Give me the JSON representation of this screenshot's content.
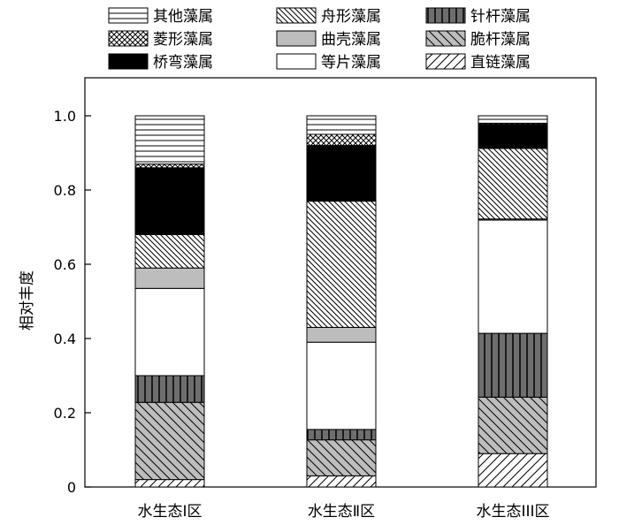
{
  "chart_data": {
    "type": "bar",
    "stacked": true,
    "ylabel": "相对丰度",
    "ylim": [
      0,
      1.0
    ],
    "yticks": [
      "0",
      "0.2",
      "0.4",
      "0.6",
      "0.8",
      "1.0"
    ],
    "categories": [
      "水生态Ⅰ区",
      "水生态Ⅱ区",
      "水生态III区"
    ],
    "legend_position": "top",
    "series": [
      {
        "name": "直链藻属",
        "pattern": "diag-fwd-sparse",
        "values": [
          0.02,
          0.03,
          0.09
        ]
      },
      {
        "name": "脆杆藻属",
        "pattern": "diag-back-gray",
        "values": [
          0.208,
          0.097,
          0.152
        ]
      },
      {
        "name": "针杆藻属",
        "pattern": "vert-gray",
        "values": [
          0.072,
          0.028,
          0.172
        ]
      },
      {
        "name": "等片藻属",
        "pattern": "white",
        "values": [
          0.235,
          0.235,
          0.305
        ]
      },
      {
        "name": "曲壳藻属",
        "pattern": "light-gray",
        "values": [
          0.055,
          0.04,
          0.003
        ]
      },
      {
        "name": "舟形藻属",
        "pattern": "diag-back-dense",
        "values": [
          0.09,
          0.34,
          0.19
        ]
      },
      {
        "name": "桥弯藻属",
        "pattern": "black",
        "values": [
          0.18,
          0.15,
          0.065
        ]
      },
      {
        "name": "菱形藻属",
        "pattern": "crosshatch",
        "values": [
          0.01,
          0.03,
          0.003
        ]
      },
      {
        "name": "其他藻属",
        "pattern": "horizontal",
        "values": [
          0.13,
          0.05,
          0.02
        ]
      }
    ]
  }
}
